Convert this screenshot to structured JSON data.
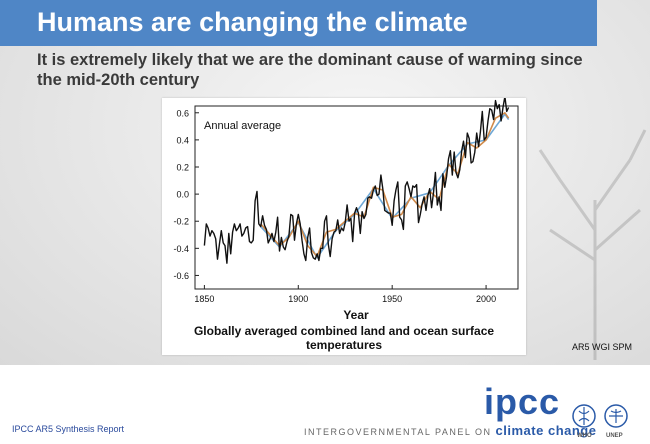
{
  "slide": {
    "title": "Humans are changing the climate",
    "subtitle": "It is extremely likely that we are the dominant cause of warming since the mid-20th century",
    "source_note": "AR5 WGI SPM"
  },
  "footer": {
    "report_label": "IPCC AR5 Synthesis Report",
    "ipcc_wordmark": "ipcc",
    "ipcc_full_prefix": "INTERGOVERNMENTAL PANEL ON",
    "ipcc_full_suffix": "climate change",
    "who_label": "WHO",
    "unep_label": "UNEP"
  },
  "chart_data": {
    "type": "line",
    "title": "Annual average",
    "xlabel": "Year",
    "caption": "Globally averaged combined land and ocean surface temperatures",
    "xlim": [
      1845,
      2017
    ],
    "ylim": [
      -0.7,
      0.65
    ],
    "xticks": [
      1850,
      1900,
      1950,
      2000
    ],
    "yticks": [
      -0.6,
      -0.4,
      -0.2,
      0.0,
      0.2,
      0.4,
      0.6
    ],
    "ytick_labels": [
      "-0.6",
      "-0.4",
      "-0.2",
      "0.0",
      "0.2",
      "0.4",
      "0.6"
    ],
    "series": [
      {
        "color": "#111111",
        "x": [
          1850,
          1851,
          1852,
          1853,
          1854,
          1855,
          1856,
          1857,
          1858,
          1859,
          1860,
          1861,
          1862,
          1863,
          1864,
          1865,
          1866,
          1867,
          1868,
          1869,
          1870,
          1871,
          1872,
          1873,
          1874,
          1875,
          1876,
          1877,
          1878,
          1879,
          1880,
          1881,
          1882,
          1883,
          1884,
          1885,
          1886,
          1887,
          1888,
          1889,
          1890,
          1891,
          1892,
          1893,
          1894,
          1895,
          1896,
          1897,
          1898,
          1899,
          1900,
          1901,
          1902,
          1903,
          1904,
          1905,
          1906,
          1907,
          1908,
          1909,
          1910,
          1911,
          1912,
          1913,
          1914,
          1915,
          1916,
          1917,
          1918,
          1919,
          1920,
          1921,
          1922,
          1923,
          1924,
          1925,
          1926,
          1927,
          1928,
          1929,
          1930,
          1931,
          1932,
          1933,
          1934,
          1935,
          1936,
          1937,
          1938,
          1939,
          1940,
          1941,
          1942,
          1943,
          1944,
          1945,
          1946,
          1947,
          1948,
          1949,
          1950,
          1951,
          1952,
          1953,
          1954,
          1955,
          1956,
          1957,
          1958,
          1959,
          1960,
          1961,
          1962,
          1963,
          1964,
          1965,
          1966,
          1967,
          1968,
          1969,
          1970,
          1971,
          1972,
          1973,
          1974,
          1975,
          1976,
          1977,
          1978,
          1979,
          1980,
          1981,
          1982,
          1983,
          1984,
          1985,
          1986,
          1987,
          1988,
          1989,
          1990,
          1991,
          1992,
          1993,
          1994,
          1995,
          1996,
          1997,
          1998,
          1999,
          2000,
          2001,
          2002,
          2003,
          2004,
          2005,
          2006,
          2007,
          2008,
          2009,
          2010,
          2011,
          2012
        ],
        "values": [
          -0.38,
          -0.22,
          -0.25,
          -0.31,
          -0.27,
          -0.29,
          -0.33,
          -0.48,
          -0.37,
          -0.27,
          -0.36,
          -0.38,
          -0.51,
          -0.29,
          -0.44,
          -0.28,
          -0.22,
          -0.27,
          -0.25,
          -0.22,
          -0.31,
          -0.29,
          -0.25,
          -0.24,
          -0.35,
          -0.36,
          -0.34,
          -0.05,
          0.02,
          -0.22,
          -0.24,
          -0.16,
          -0.23,
          -0.26,
          -0.36,
          -0.33,
          -0.29,
          -0.35,
          -0.28,
          -0.17,
          -0.42,
          -0.32,
          -0.39,
          -0.41,
          -0.35,
          -0.31,
          -0.15,
          -0.16,
          -0.34,
          -0.22,
          -0.15,
          -0.22,
          -0.34,
          -0.44,
          -0.49,
          -0.32,
          -0.25,
          -0.43,
          -0.47,
          -0.48,
          -0.44,
          -0.49,
          -0.4,
          -0.4,
          -0.2,
          -0.16,
          -0.37,
          -0.46,
          -0.33,
          -0.28,
          -0.27,
          -0.19,
          -0.29,
          -0.25,
          -0.27,
          -0.21,
          -0.08,
          -0.2,
          -0.18,
          -0.35,
          -0.14,
          -0.1,
          -0.14,
          -0.29,
          -0.13,
          -0.18,
          -0.15,
          -0.03,
          -0.02,
          -0.03,
          0.03,
          0.06,
          -0.01,
          0.0,
          0.14,
          0.04,
          -0.12,
          -0.13,
          -0.14,
          -0.14,
          -0.23,
          -0.05,
          0.03,
          0.09,
          -0.17,
          -0.19,
          -0.26,
          0.06,
          0.09,
          0.04,
          -0.02,
          0.06,
          0.05,
          0.07,
          -0.21,
          -0.15,
          -0.07,
          -0.02,
          -0.12,
          -0.01,
          0.04,
          -0.1,
          0.01,
          0.16,
          -0.08,
          -0.02,
          -0.12,
          0.15,
          0.05,
          0.13,
          0.26,
          0.32,
          0.14,
          0.31,
          0.16,
          0.12,
          0.18,
          0.32,
          0.39,
          0.27,
          0.45,
          0.41,
          0.23,
          0.24,
          0.31,
          0.45,
          0.35,
          0.46,
          0.61,
          0.4,
          0.42,
          0.54,
          0.63,
          0.62,
          0.55,
          0.69,
          0.63,
          0.66,
          0.54,
          0.64,
          0.72,
          0.61,
          0.64
        ]
      },
      {
        "color": "#d08a4a",
        "x": [
          1880,
          1885,
          1890,
          1895,
          1900,
          1905,
          1910,
          1915,
          1920,
          1925,
          1930,
          1935,
          1940,
          1945,
          1950,
          1955,
          1960,
          1965,
          1970,
          1975,
          1980,
          1985,
          1990,
          1995,
          2000,
          2005,
          2010,
          2012
        ],
        "values": [
          -0.22,
          -0.3,
          -0.38,
          -0.32,
          -0.2,
          -0.38,
          -0.46,
          -0.28,
          -0.26,
          -0.2,
          -0.14,
          -0.17,
          0.05,
          0.03,
          -0.17,
          -0.15,
          -0.02,
          -0.1,
          0.02,
          -0.04,
          0.22,
          0.15,
          0.38,
          0.34,
          0.4,
          0.56,
          0.6,
          0.56
        ]
      },
      {
        "color": "#6fa8d6",
        "x": [
          1880,
          1890,
          1900,
          1910,
          1920,
          1930,
          1940,
          1950,
          1960,
          1970,
          1980,
          1990,
          2000,
          2010,
          2012
        ],
        "values": [
          -0.24,
          -0.39,
          -0.21,
          -0.47,
          -0.27,
          -0.15,
          0.04,
          -0.18,
          -0.03,
          0.01,
          0.21,
          0.37,
          0.4,
          0.59,
          0.55
        ]
      }
    ]
  }
}
